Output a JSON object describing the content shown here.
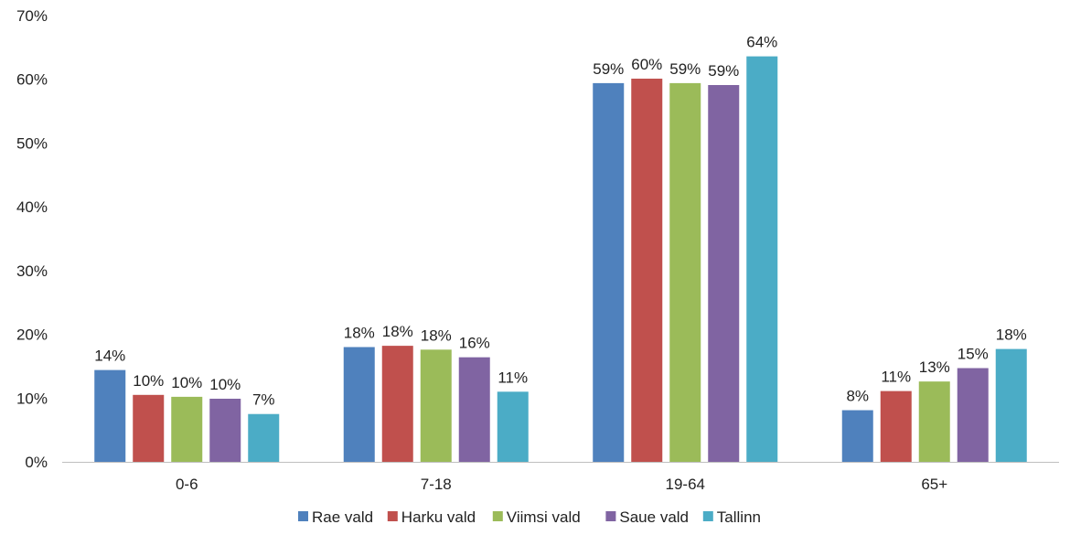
{
  "chart_data": {
    "type": "bar",
    "title": "",
    "xlabel": "",
    "ylabel": "",
    "categories": [
      "0-6",
      "7-18",
      "19-64",
      "65+"
    ],
    "ylim": [
      0,
      70
    ],
    "y_ticks": [
      "0%",
      "10%",
      "20%",
      "30%",
      "40%",
      "50%",
      "60%",
      "70%"
    ],
    "y_tick_values": [
      0,
      10,
      20,
      30,
      40,
      50,
      60,
      70
    ],
    "grid": false,
    "legend_position": "bottom",
    "series": [
      {
        "name": "Rae vald",
        "color": "#4F81BD",
        "values": [
          14.4,
          18.0,
          59.4,
          8.1
        ],
        "labels": [
          "14%",
          "18%",
          "59%",
          "8%"
        ]
      },
      {
        "name": "Harku vald",
        "color": "#C0504D",
        "values": [
          10.5,
          18.2,
          60.1,
          11.1
        ],
        "labels": [
          "10%",
          "18%",
          "60%",
          "11%"
        ]
      },
      {
        "name": "Viimsi vald",
        "color": "#9BBB59",
        "values": [
          10.2,
          17.6,
          59.4,
          12.6
        ],
        "labels": [
          "10%",
          "18%",
          "59%",
          "13%"
        ]
      },
      {
        "name": "Saue vald",
        "color": "#8064A2",
        "values": [
          9.9,
          16.4,
          59.1,
          14.7
        ],
        "labels": [
          "10%",
          "16%",
          "59%",
          "15%"
        ]
      },
      {
        "name": "Tallinn",
        "color": "#4BACC6",
        "values": [
          7.5,
          11.0,
          63.6,
          17.7
        ],
        "labels": [
          "7%",
          "11%",
          "64%",
          "18%"
        ]
      }
    ]
  }
}
